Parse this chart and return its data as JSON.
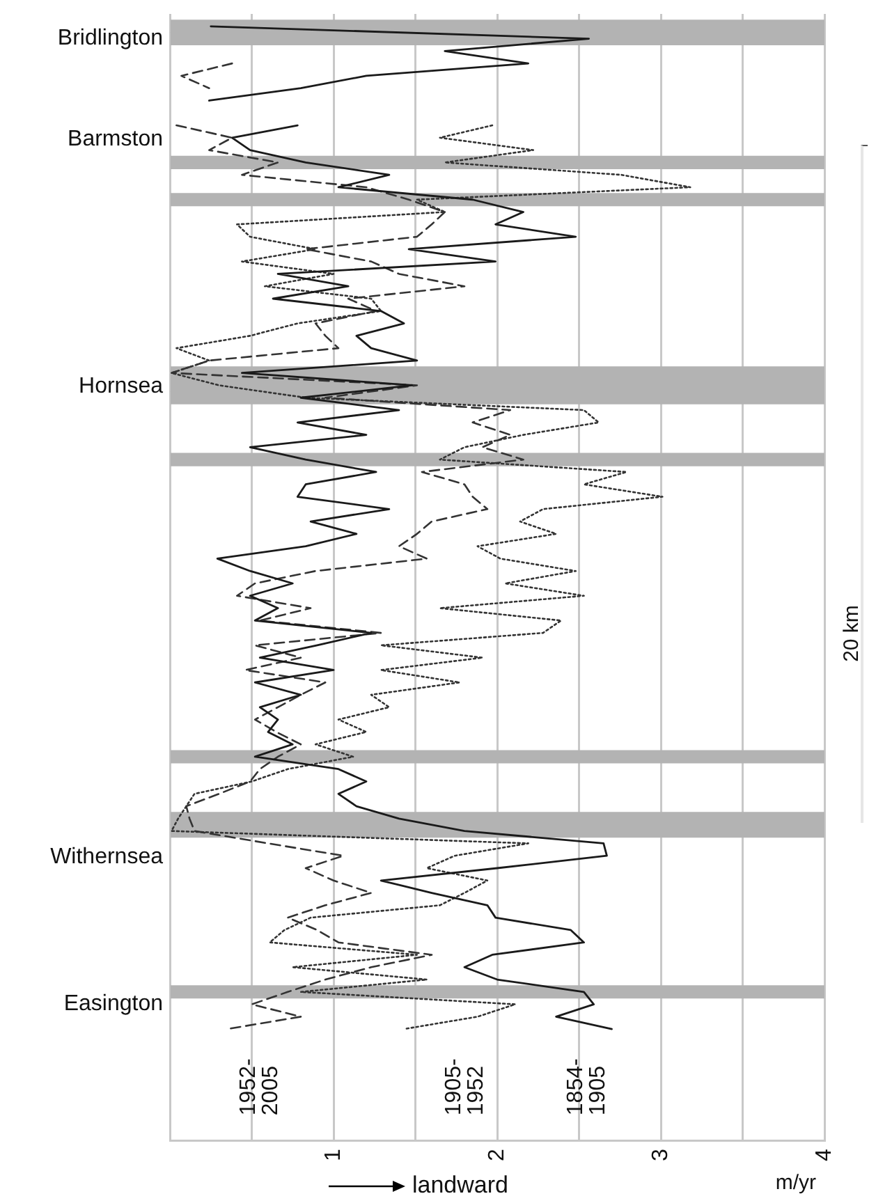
{
  "chart_data": {
    "type": "line",
    "orientation": "horizontal",
    "xlabel": "m/yr",
    "annotations": [
      "landward",
      "20 km"
    ],
    "xlim": [
      0,
      4
    ],
    "xticks": [
      {
        "value": 0,
        "label": null
      },
      {
        "value": 0.5,
        "label": null
      },
      1,
      {
        "value": 1.5,
        "label": null
      },
      2,
      {
        "value": 2.5,
        "label": null
      },
      3,
      {
        "value": 3.5,
        "label": null
      },
      4
    ],
    "grid": "x",
    "categories": [
      null,
      "Bridlington",
      null,
      null,
      null,
      null,
      null,
      null,
      null,
      "Barmston",
      null,
      null,
      null,
      null,
      null,
      null,
      null,
      null,
      null,
      null,
      null,
      null,
      null,
      null,
      null,
      null,
      null,
      null,
      null,
      "Hornsea",
      null,
      null,
      null,
      null,
      null,
      null,
      null,
      null,
      null,
      null,
      null,
      null,
      null,
      null,
      null,
      null,
      null,
      null,
      null,
      null,
      null,
      null,
      null,
      null,
      null,
      null,
      null,
      null,
      null,
      null,
      null,
      null,
      null,
      null,
      null,
      null,
      null,
      "Withernsea",
      null,
      null,
      null,
      null,
      null,
      null,
      null,
      null,
      null,
      null,
      null,
      "Easington",
      null,
      null,
      null,
      null,
      null,
      null,
      null,
      null,
      null,
      null
    ],
    "series": [
      {
        "type": "bar",
        "color": "#b3b3b3",
        "values": [
          4,
          4,
          null,
          null,
          null,
          null,
          null,
          null,
          null,
          null,
          null,
          4,
          null,
          null,
          4,
          null,
          null,
          null,
          null,
          null,
          null,
          null,
          null,
          null,
          null,
          null,
          null,
          null,
          4,
          4,
          4,
          null,
          null,
          null,
          null,
          4,
          null,
          null,
          null,
          null,
          null,
          null,
          null,
          null,
          null,
          null,
          null,
          null,
          null,
          null,
          null,
          null,
          null,
          null,
          null,
          null,
          null,
          null,
          null,
          4,
          null,
          null,
          null,
          null,
          4,
          4,
          null,
          null,
          null,
          null,
          null,
          null,
          null,
          null,
          null,
          null,
          null,
          null,
          4,
          null,
          null,
          null,
          null,
          null,
          null,
          null,
          null,
          null,
          null,
          null
        ]
      },
      {
        "name": "1854-1905",
        "color": "#1a1a1a",
        "line_style": "solid",
        "values": [
          0.25,
          2.56,
          1.68,
          2.19,
          1.2,
          0.8,
          0.24,
          null,
          0.78,
          0.38,
          0.49,
          0.83,
          1.34,
          1.03,
          1.85,
          2.16,
          1.99,
          2.48,
          1.46,
          1.99,
          0.66,
          1.09,
          0.63,
          1.29,
          1.43,
          1.14,
          1.23,
          1.51,
          0.44,
          1.48,
          0.8,
          1.4,
          0.78,
          1.2,
          0.49,
          0.83,
          1.26,
          0.83,
          0.78,
          1.34,
          0.86,
          1.14,
          0.83,
          0.29,
          0.49,
          0.75,
          0.49,
          0.66,
          0.52,
          1.23,
          0.9,
          0.55,
          1.0,
          0.52,
          0.8,
          0.55,
          0.66,
          0.6,
          0.75,
          0.52,
          1.03,
          1.2,
          1.03,
          1.14,
          1.4,
          1.8,
          2.65,
          2.67,
          2.0,
          1.29,
          1.6,
          1.94,
          1.99,
          2.45,
          2.53,
          1.97,
          1.8,
          2.0,
          2.53,
          2.59,
          2.36,
          2.7,
          null,
          null,
          null,
          null,
          null,
          null,
          null,
          null
        ]
      },
      {
        "name": "1905-1952",
        "color": "#333333",
        "line_style": "dotted",
        "values": [
          null,
          null,
          null,
          null,
          null,
          null,
          null,
          null,
          1.97,
          1.65,
          2.22,
          1.68,
          2.76,
          3.18,
          1.51,
          1.68,
          0.41,
          0.49,
          0.89,
          0.44,
          1.0,
          0.58,
          1.23,
          1.29,
          0.78,
          0.49,
          0.04,
          0.24,
          0.01,
          0.3,
          0.83,
          2.53,
          2.62,
          2.16,
          1.8,
          1.65,
          2.79,
          2.53,
          3.01,
          2.28,
          2.14,
          2.36,
          1.88,
          2.02,
          2.48,
          2.05,
          2.53,
          1.65,
          2.39,
          2.28,
          1.29,
          1.91,
          1.29,
          1.77,
          1.23,
          1.34,
          1.03,
          1.2,
          0.89,
          1.12,
          0.72,
          0.5,
          0.15,
          0.1,
          0.05,
          0.01,
          2.19,
          1.74,
          1.57,
          1.94,
          1.8,
          1.65,
          0.86,
          0.7,
          0.61,
          1.51,
          0.75,
          1.57,
          0.8,
          2.11,
          1.88,
          1.43,
          null,
          null,
          null,
          null,
          null,
          null,
          null,
          null
        ]
      },
      {
        "name": "1952-2005",
        "color": "#333333",
        "line_style": "dashed",
        "values": [
          null,
          null,
          null,
          0.38,
          0.07,
          0.24,
          null,
          null,
          0.04,
          0.38,
          0.24,
          0.66,
          0.44,
          1.2,
          1.46,
          1.68,
          1.6,
          1.51,
          0.83,
          1.23,
          1.4,
          1.8,
          1.09,
          1.26,
          0.89,
          0.95,
          1.03,
          0.24,
          0.01,
          1.51,
          0.95,
          2.08,
          1.85,
          2.08,
          1.91,
          2.16,
          1.54,
          1.8,
          1.85,
          1.94,
          1.6,
          1.51,
          1.4,
          1.57,
          0.89,
          0.52,
          0.41,
          0.86,
          0.55,
          1.29,
          0.52,
          0.8,
          0.46,
          0.95,
          0.8,
          0.66,
          0.52,
          0.65,
          0.8,
          0.66,
          0.55,
          0.49,
          0.3,
          0.1,
          0.12,
          0.15,
          0.6,
          1.06,
          0.83,
          1.0,
          1.23,
          0.95,
          0.72,
          0.9,
          1.03,
          1.6,
          1.23,
          0.95,
          0.72,
          0.5,
          0.8,
          0.35,
          null,
          null,
          null,
          null,
          null,
          null,
          null,
          null
        ]
      }
    ]
  }
}
